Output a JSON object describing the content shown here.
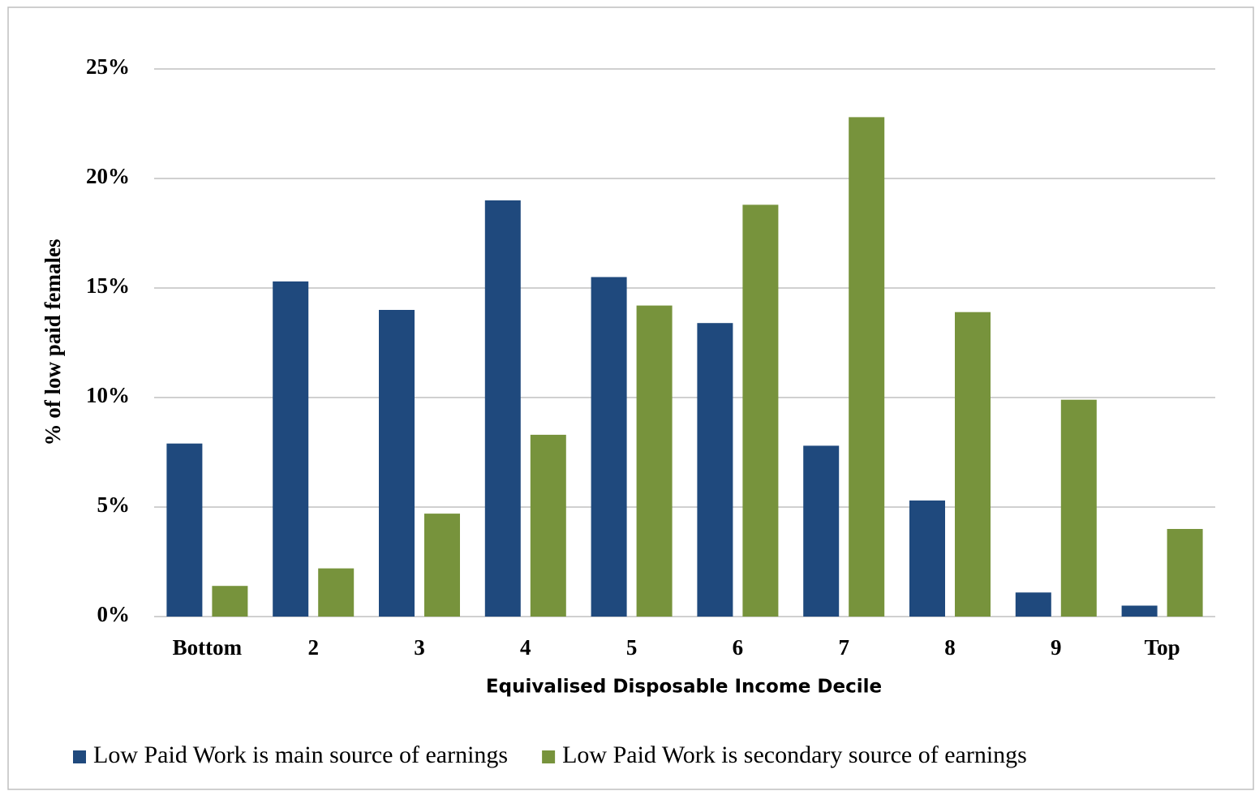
{
  "chart_data": {
    "type": "bar",
    "x_label": "Equivalised Disposable Income Decile",
    "y_label": "% of low paid females",
    "categories": [
      "Bottom",
      "2",
      "3",
      "4",
      "5",
      "6",
      "7",
      "8",
      "9",
      "Top"
    ],
    "series": [
      {
        "name": "Low Paid Work is main source of earnings",
        "color": "#1f497d",
        "values": [
          7.9,
          15.3,
          14.0,
          19.0,
          15.5,
          13.4,
          7.8,
          5.3,
          1.1,
          0.5
        ]
      },
      {
        "name": "Low Paid Work is secondary source of earnings",
        "color": "#77933c",
        "values": [
          1.4,
          2.2,
          4.7,
          8.3,
          14.2,
          18.8,
          22.8,
          13.9,
          9.9,
          4.0
        ]
      }
    ],
    "ylim": [
      0,
      25
    ],
    "yticks": [
      {
        "value": 0,
        "label": "0%"
      },
      {
        "value": 5,
        "label": "5%"
      },
      {
        "value": 10,
        "label": "10%"
      },
      {
        "value": 15,
        "label": "15%"
      },
      {
        "value": 20,
        "label": "20%"
      },
      {
        "value": 25,
        "label": "25%"
      }
    ],
    "grid": true,
    "legend": "bottom"
  }
}
